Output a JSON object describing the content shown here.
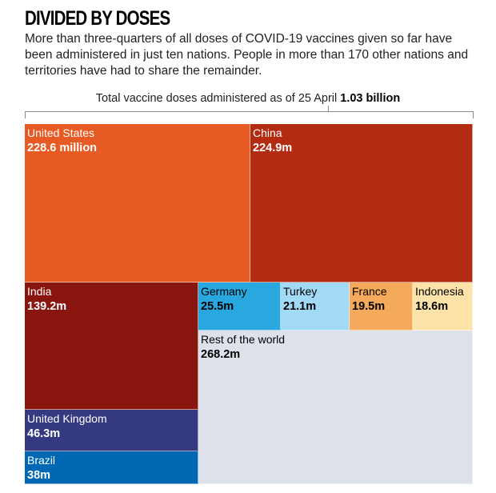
{
  "header": {
    "title": "DIVIDED BY DOSES",
    "subtitle": "More than three-quarters of all doses of COVID-19 vaccines given so far have been administered in just ten nations. People in more than 170 other nations and territories have had to share the remainder.",
    "total_label": "Total vaccine doses administered as of 25 April",
    "total_value": "1.03 billion"
  },
  "chart_data": {
    "type": "treemap",
    "title": "DIVIDED BY DOSES",
    "unit": "million doses",
    "total": 1030,
    "items": [
      {
        "name": "United States",
        "label": "228.6 million",
        "value": 228.6,
        "color": "#e85a24",
        "text": "#ffffff"
      },
      {
        "name": "China",
        "label": "224.9m",
        "value": 224.9,
        "color": "#b32c12",
        "text": "#ffffff"
      },
      {
        "name": "India",
        "label": "139.2m",
        "value": 139.2,
        "color": "#88150e",
        "text": "#ffffff"
      },
      {
        "name": "United Kingdom",
        "label": "46.3m",
        "value": 46.3,
        "color": "#353a80",
        "text": "#ffffff"
      },
      {
        "name": "Brazil",
        "label": "38m",
        "value": 38,
        "color": "#0068b3",
        "text": "#ffffff"
      },
      {
        "name": "Germany",
        "label": "25.5m",
        "value": 25.5,
        "color": "#29a8e0",
        "text": "#000000"
      },
      {
        "name": "Turkey",
        "label": "21.1m",
        "value": 21.1,
        "color": "#a2d9f5",
        "text": "#000000"
      },
      {
        "name": "France",
        "label": "19.5m",
        "value": 19.5,
        "color": "#f5a95a",
        "text": "#000000"
      },
      {
        "name": "Indonesia",
        "label": "18.6m",
        "value": 18.6,
        "color": "#fde3a8",
        "text": "#000000"
      },
      {
        "name": "Rest of the world",
        "label": "268.2m",
        "value": 268.2,
        "color": "#dde2ea",
        "text": "#000000"
      }
    ]
  }
}
